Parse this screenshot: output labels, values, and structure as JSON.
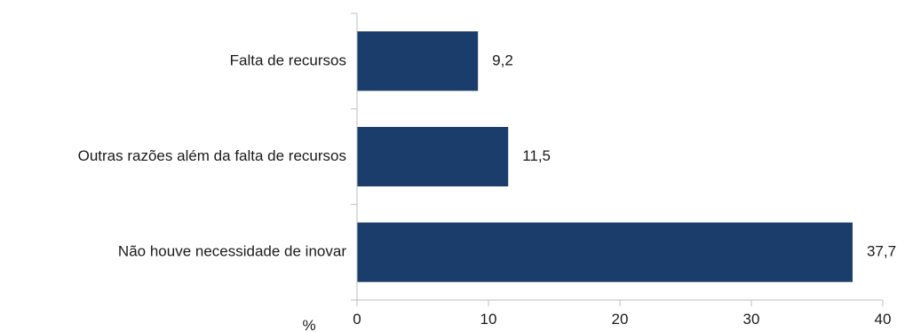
{
  "chart_data": {
    "type": "bar",
    "orientation": "horizontal",
    "categories": [
      "Falta de recursos",
      "Outras razões além da falta de recursos",
      "Não houve necessidade de inovar"
    ],
    "values": [
      9.2,
      11.5,
      37.7
    ],
    "value_labels": [
      "9,2",
      "11,5",
      "37,7"
    ],
    "title": "",
    "xlabel": "%",
    "ylabel": "",
    "xlim": [
      0,
      40
    ],
    "x_ticks": [
      0,
      10,
      20,
      30,
      40
    ],
    "x_tick_labels": [
      "0",
      "10",
      "20",
      "30",
      "40"
    ],
    "grid": false,
    "legend": "none",
    "colors": {
      "bar": "#1a3d6b",
      "axis": "#bfbfbf",
      "text": "#1a1a1a"
    }
  }
}
